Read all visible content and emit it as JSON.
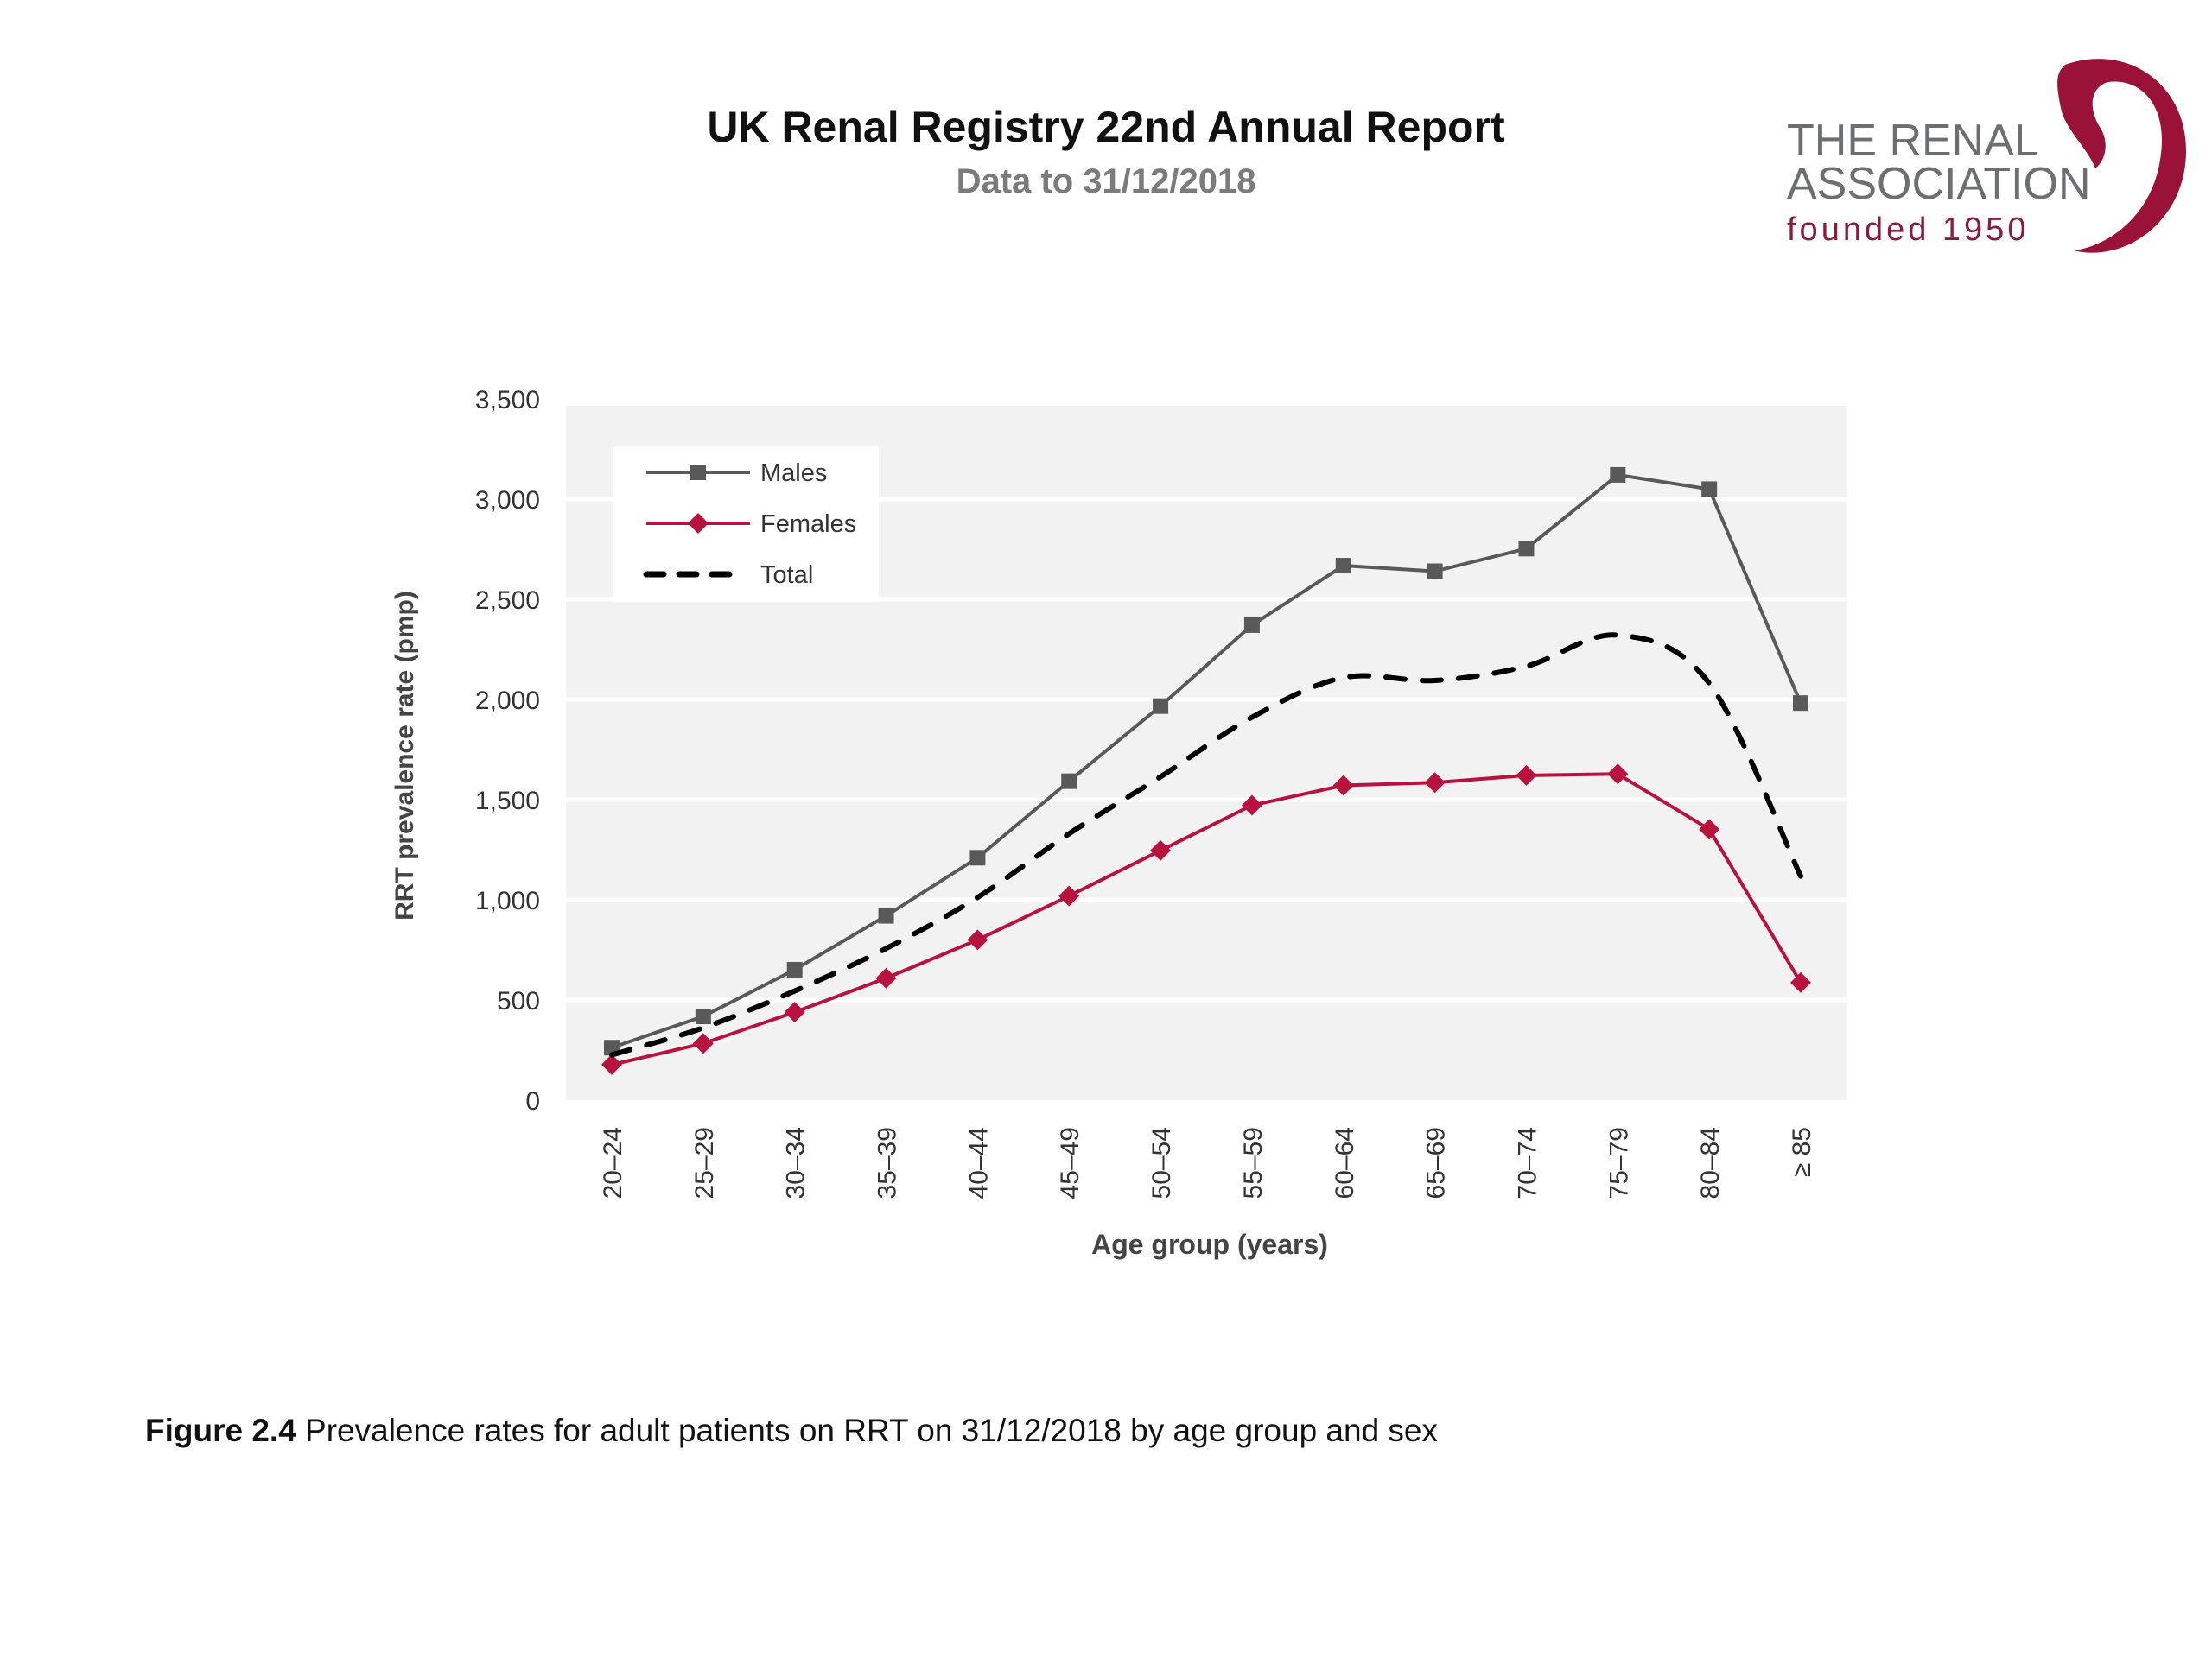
{
  "header": {
    "title": "UK Renal Registry 22nd Annual Report",
    "subtitle": "Data to 31/12/2018"
  },
  "logo": {
    "line1": "THE RENAL",
    "line2": "ASSOCIATION",
    "line3": "founded 1950",
    "color_text": "#6d6e70",
    "color_brand": "#8a1c3c"
  },
  "caption": {
    "label": "Figure 2.4",
    "text": " Prevalence rates for adult patients on RRT on 31/12/2018 by age group and sex"
  },
  "chart_data": {
    "type": "line",
    "title": "",
    "xlabel": "Age group (years)",
    "ylabel": "RRT prevalence rate (pmp)",
    "ylim": [
      0,
      3500
    ],
    "yticks": [
      0,
      500,
      1000,
      1500,
      2000,
      2500,
      3000,
      3500
    ],
    "ytick_labels": [
      "0",
      "500",
      "1,000",
      "1,500",
      "2,000",
      "2,500",
      "3,000",
      "3,500"
    ],
    "grid": true,
    "legend_position": "top-left",
    "categories": [
      "20–24",
      "25–29",
      "30–34",
      "35–39",
      "40–44",
      "45–49",
      "50–54",
      "55–59",
      "60–64",
      "65–69",
      "70–74",
      "75–79",
      "80–84",
      "≥ 85"
    ],
    "series": [
      {
        "name": "Males",
        "color": "#595959",
        "style": "solid",
        "marker": "square",
        "values": [
          262,
          418,
          651,
          920,
          1210,
          1592,
          1967,
          2371,
          2668,
          2640,
          2753,
          3121,
          3050,
          1982
        ]
      },
      {
        "name": "Females",
        "color": "#b8123e",
        "style": "solid",
        "marker": "diamond",
        "values": [
          177,
          283,
          439,
          609,
          800,
          1019,
          1246,
          1472,
          1571,
          1585,
          1621,
          1628,
          1352,
          587
        ]
      },
      {
        "name": "Total",
        "color": "#000000",
        "style": "dashed",
        "marker": "none",
        "values": [
          226,
          361,
          545,
          757,
          1012,
          1330,
          1614,
          1911,
          2109,
          2095,
          2166,
          2321,
          2081,
          1118
        ]
      }
    ]
  }
}
